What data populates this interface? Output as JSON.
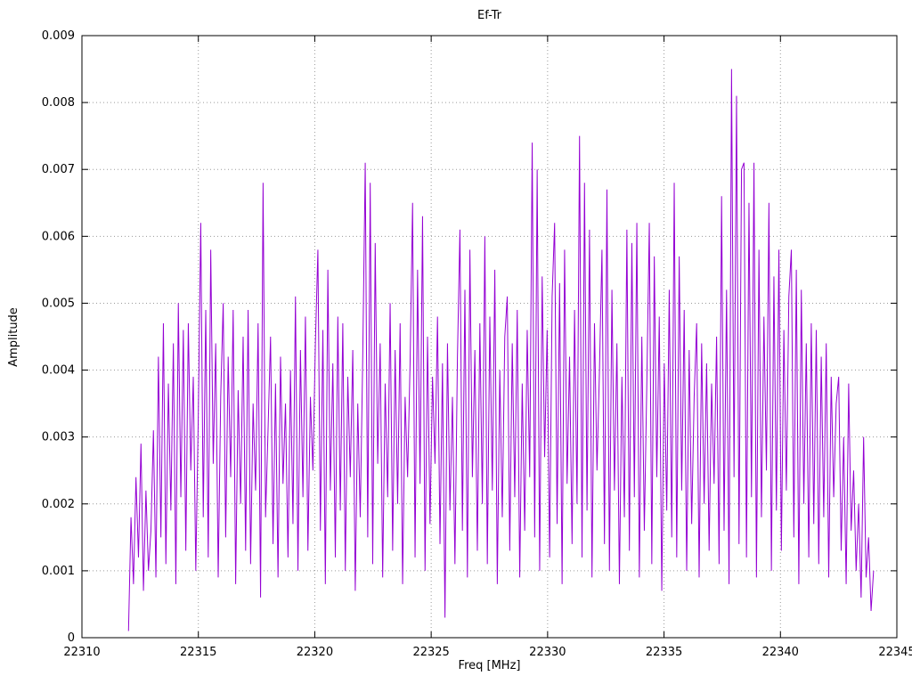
{
  "chart_data": {
    "type": "line",
    "title": "Ef-Tr",
    "xlabel": "Freq [MHz]",
    "ylabel": "Amplitude",
    "xlim": [
      22310,
      22345
    ],
    "ylim": [
      0,
      0.009
    ],
    "xticks": [
      22310,
      22315,
      22320,
      22325,
      22330,
      22335,
      22340,
      22345
    ],
    "xtick_labels": [
      "22310",
      "22315",
      "22320",
      "22325",
      "22330",
      "22335",
      "22340",
      "22345"
    ],
    "yticks": [
      0,
      0.001,
      0.002,
      0.003,
      0.004,
      0.005,
      0.006,
      0.007,
      0.008,
      0.009
    ],
    "ytick_labels": [
      "0",
      "0.001",
      "0.002",
      "0.003",
      "0.004",
      "0.005",
      "0.006",
      "0.007",
      "0.008",
      "0.009"
    ],
    "grid": true,
    "grid_color": "#9a9a9a",
    "line_color": "#9400d3",
    "legend_position": "none",
    "x_start": 22312,
    "x_end": 22344,
    "values": [
      0.0001,
      0.0018,
      0.0008,
      0.0024,
      0.0012,
      0.0029,
      0.0007,
      0.0022,
      0.001,
      0.0016,
      0.0031,
      0.0009,
      0.0042,
      0.0015,
      0.0047,
      0.0011,
      0.0038,
      0.0019,
      0.0044,
      0.0008,
      0.005,
      0.0021,
      0.0046,
      0.0013,
      0.0047,
      0.0025,
      0.0039,
      0.001,
      0.0033,
      0.0062,
      0.0018,
      0.0049,
      0.0012,
      0.0058,
      0.0026,
      0.0044,
      0.0009,
      0.0036,
      0.005,
      0.0015,
      0.0042,
      0.0024,
      0.0049,
      0.0008,
      0.0037,
      0.002,
      0.0045,
      0.0013,
      0.0049,
      0.0011,
      0.0035,
      0.0022,
      0.0047,
      0.0006,
      0.0068,
      0.0018,
      0.0031,
      0.0045,
      0.0014,
      0.0038,
      0.0009,
      0.0042,
      0.0023,
      0.0035,
      0.0012,
      0.004,
      0.0017,
      0.0051,
      0.001,
      0.0043,
      0.0021,
      0.0048,
      0.0013,
      0.0036,
      0.0025,
      0.0044,
      0.0058,
      0.0016,
      0.0046,
      0.0008,
      0.0055,
      0.0022,
      0.0041,
      0.0012,
      0.0048,
      0.0019,
      0.0047,
      0.001,
      0.0039,
      0.0024,
      0.0043,
      0.0007,
      0.0035,
      0.0018,
      0.0042,
      0.0071,
      0.0015,
      0.0068,
      0.0011,
      0.0059,
      0.0026,
      0.0044,
      0.0009,
      0.0038,
      0.0021,
      0.005,
      0.0013,
      0.0043,
      0.002,
      0.0047,
      0.0008,
      0.0036,
      0.0024,
      0.0041,
      0.0065,
      0.0012,
      0.0055,
      0.0023,
      0.0063,
      0.001,
      0.0045,
      0.0017,
      0.0039,
      0.0026,
      0.0048,
      0.0014,
      0.0041,
      0.0003,
      0.0044,
      0.0019,
      0.0036,
      0.0011,
      0.0042,
      0.0061,
      0.0016,
      0.0052,
      0.0009,
      0.0058,
      0.0024,
      0.0043,
      0.0013,
      0.0047,
      0.002,
      0.006,
      0.0011,
      0.0048,
      0.0022,
      0.0055,
      0.0008,
      0.004,
      0.0018,
      0.0045,
      0.0051,
      0.0013,
      0.0044,
      0.0021,
      0.0049,
      0.0009,
      0.0038,
      0.0016,
      0.0046,
      0.0024,
      0.0074,
      0.0015,
      0.007,
      0.001,
      0.0054,
      0.0027,
      0.0046,
      0.0012,
      0.0051,
      0.0062,
      0.0017,
      0.0053,
      0.0008,
      0.0058,
      0.0023,
      0.0042,
      0.0014,
      0.0049,
      0.002,
      0.0075,
      0.0012,
      0.0068,
      0.0019,
      0.0061,
      0.0009,
      0.0047,
      0.0025,
      0.004,
      0.0058,
      0.0014,
      0.0067,
      0.001,
      0.0052,
      0.0022,
      0.0044,
      0.0008,
      0.0039,
      0.0018,
      0.0061,
      0.0013,
      0.0059,
      0.0021,
      0.0062,
      0.0009,
      0.0045,
      0.0016,
      0.0038,
      0.0062,
      0.0011,
      0.0057,
      0.0024,
      0.0048,
      0.0007,
      0.0041,
      0.0019,
      0.0052,
      0.0015,
      0.0068,
      0.0012,
      0.0057,
      0.0022,
      0.0049,
      0.001,
      0.0043,
      0.0017,
      0.0036,
      0.0047,
      0.0009,
      0.0044,
      0.002,
      0.0041,
      0.0013,
      0.0038,
      0.0023,
      0.0045,
      0.0011,
      0.0066,
      0.0016,
      0.0052,
      0.0008,
      0.0085,
      0.0024,
      0.0081,
      0.0014,
      0.007,
      0.0071,
      0.0012,
      0.0065,
      0.0021,
      0.0071,
      0.0009,
      0.0058,
      0.0018,
      0.0048,
      0.0025,
      0.0065,
      0.001,
      0.0054,
      0.0019,
      0.0058,
      0.0013,
      0.0046,
      0.0022,
      0.0051,
      0.0058,
      0.0015,
      0.0055,
      0.0008,
      0.0052,
      0.002,
      0.0044,
      0.0012,
      0.0047,
      0.0017,
      0.0046,
      0.0011,
      0.0042,
      0.0018,
      0.0044,
      0.0009,
      0.0039,
      0.0021,
      0.0035,
      0.0039,
      0.0013,
      0.003,
      0.0008,
      0.0038,
      0.0016,
      0.0025,
      0.001,
      0.002,
      0.0006,
      0.003,
      0.0009,
      0.0015,
      0.0004,
      0.001
    ]
  }
}
